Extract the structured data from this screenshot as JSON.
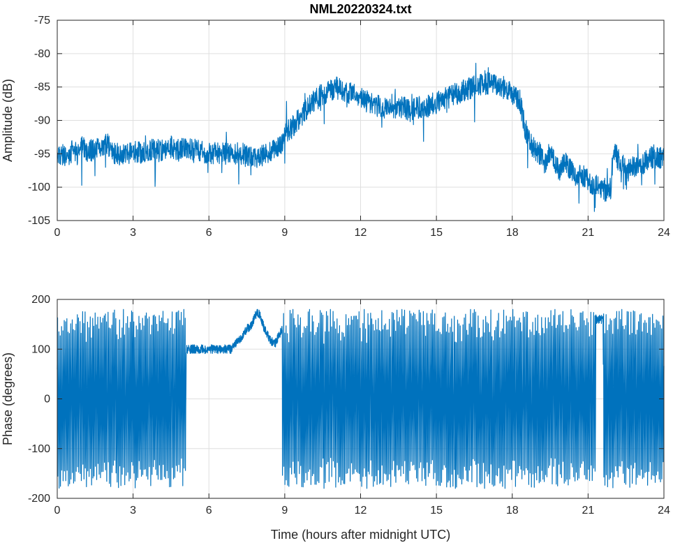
{
  "colors": {
    "series": "#0072bd",
    "grid": "#dfdfdf",
    "axis": "#262626"
  },
  "chart_data": [
    {
      "type": "line",
      "title": "NML20220324.txt",
      "xlabel": "",
      "ylabel": "Amplitude (dB)",
      "xlim": [
        0,
        24
      ],
      "ylim": [
        -105,
        -75
      ],
      "x_ticks": [
        0,
        3,
        6,
        9,
        12,
        15,
        18,
        21,
        24
      ],
      "y_ticks": [
        -105,
        -100,
        -95,
        -90,
        -85,
        -80,
        -75
      ],
      "grid": true,
      "series": [
        {
          "x": [
            0,
            0.1,
            0.2,
            0.4,
            0.6,
            0.8,
            1.0,
            1.2,
            1.5,
            1.8,
            2.0,
            2.2,
            2.5,
            2.8,
            3.0,
            3.3,
            3.6,
            3.9,
            4.2,
            4.5,
            4.8,
            5.0,
            5.3,
            5.6,
            5.9,
            6.2,
            6.5,
            6.8,
            7.0,
            7.3,
            7.6,
            7.9,
            8.2,
            8.5,
            8.8,
            9.0,
            9.3,
            9.6,
            9.9,
            10.2,
            10.5,
            10.8,
            11.0,
            11.3,
            11.6,
            11.9,
            12.2,
            12.5,
            12.8,
            13.1,
            13.4,
            13.7,
            14.0,
            14.3,
            14.6,
            14.9,
            15.2,
            15.5,
            15.8,
            16.1,
            16.4,
            16.7,
            17.0,
            17.3,
            17.6,
            17.9,
            18.1,
            18.3,
            18.5,
            18.7,
            18.9,
            19.1,
            19.3,
            19.5,
            19.7,
            19.9,
            20.1,
            20.3,
            20.5,
            20.7,
            20.9,
            21.1,
            21.3,
            21.5,
            21.7,
            21.9,
            22.0,
            22.2,
            22.4,
            22.6,
            22.8,
            23.0,
            23.2,
            23.4,
            23.6,
            23.8,
            24.0
          ],
          "values": [
            -96,
            -95.5,
            -95,
            -95.5,
            -94.5,
            -95,
            -94,
            -94.5,
            -94.5,
            -94,
            -93.5,
            -95,
            -95,
            -95,
            -94.5,
            -95,
            -94.5,
            -94.5,
            -94.5,
            -94,
            -94.5,
            -94,
            -94.5,
            -94.5,
            -95,
            -95,
            -95,
            -95,
            -95,
            -95,
            -95.5,
            -96,
            -95,
            -94.5,
            -94,
            -92,
            -91,
            -89.5,
            -88,
            -87,
            -86,
            -85.5,
            -85,
            -85.5,
            -86,
            -86.5,
            -87,
            -87.5,
            -88,
            -88,
            -88,
            -88,
            -88.5,
            -88,
            -88,
            -87.5,
            -87,
            -86.5,
            -86,
            -85.5,
            -85,
            -84.5,
            -84.5,
            -84.5,
            -85,
            -85.5,
            -86.5,
            -87,
            -91,
            -93.5,
            -94.5,
            -95,
            -96.5,
            -94.5,
            -96.5,
            -97.5,
            -96,
            -97.5,
            -98.5,
            -98,
            -98.5,
            -99.5,
            -99.5,
            -100,
            -100.5,
            -100.5,
            -94,
            -96,
            -96.5,
            -97.5,
            -97,
            -96.5,
            -96.5,
            -95.5,
            -95.5,
            -95.5,
            -95.5
          ]
        }
      ]
    },
    {
      "type": "line",
      "title": "",
      "xlabel": "Time (hours after midnight UTC)",
      "ylabel": "Phase (degrees)",
      "xlim": [
        0,
        24
      ],
      "ylim": [
        -200,
        200
      ],
      "x_ticks": [
        0,
        3,
        6,
        9,
        12,
        15,
        18,
        21,
        24
      ],
      "y_ticks": [
        -200,
        -100,
        0,
        100,
        200
      ],
      "grid": true,
      "series": [
        {
          "x": [
            6.9,
            7.1,
            7.3,
            7.5,
            7.7,
            7.9,
            8.0,
            8.2,
            8.4,
            8.6,
            8.8,
            9.0
          ],
          "values": [
            100,
            115,
            125,
            140,
            150,
            175,
            170,
            140,
            120,
            110,
            130,
            160
          ],
          "wrapped_segments": [
            [
              0,
              5.1
            ],
            [
              8.9,
              21.3
            ],
            [
              21.6,
              24
            ]
          ],
          "phase_wrap_limit": 180
        }
      ]
    }
  ]
}
